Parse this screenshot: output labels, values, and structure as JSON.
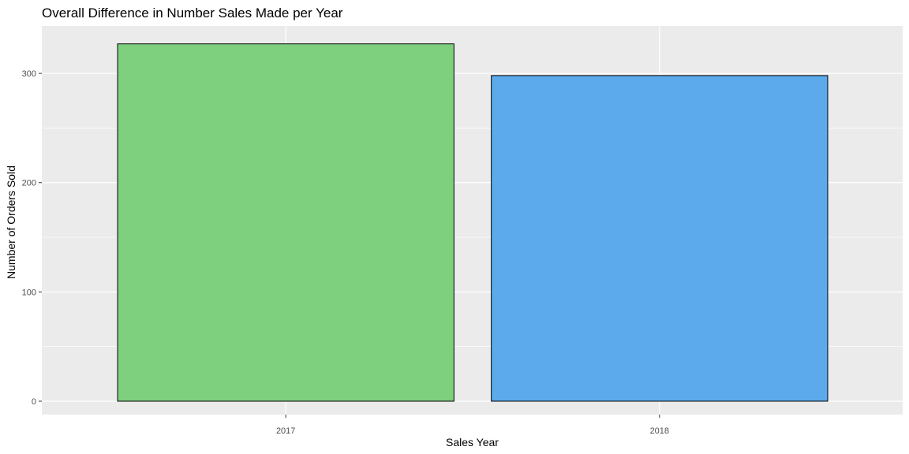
{
  "chart_data": {
    "type": "bar",
    "title": "Overall Difference in Number Sales Made per Year",
    "xlabel": "Sales Year",
    "ylabel": "Number of Orders Sold",
    "categories": [
      "2017",
      "2018"
    ],
    "values": [
      327,
      298
    ],
    "bar_colors": [
      "#7ecf7e",
      "#5caaec"
    ],
    "bar_outline_color": "#000000",
    "panel_background": "#ebebeb",
    "grid_color": "#ffffff",
    "grid": true,
    "legend": "none",
    "ylim": [
      0,
      343.35
    ],
    "y_ticks": [
      0,
      100,
      200,
      300
    ],
    "y_tick_labels": [
      "0",
      "100",
      "200",
      "300"
    ]
  }
}
